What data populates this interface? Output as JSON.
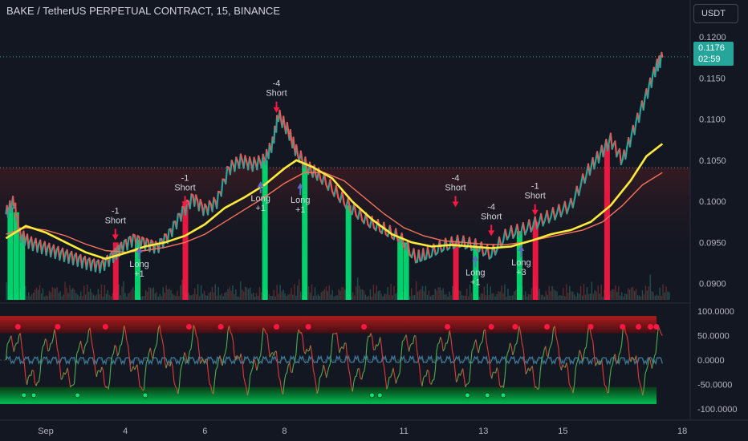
{
  "header": {
    "title": "BAKE / TetherUS PERPETUAL CONTRACT, 15, BINANCE",
    "currency": "USDT"
  },
  "last_price": {
    "value": "0.1176",
    "countdown": "02:59"
  },
  "colors": {
    "background": "#131722",
    "up": "#26a69a",
    "down": "#ef5350",
    "sma_fast": "#ffeb3b",
    "sma_slow": "#f7725b",
    "signal_green": "#00e676",
    "signal_red": "#ff1744",
    "osc_wave": "#3d7a99"
  },
  "chart_data": [
    {
      "type": "line",
      "panel": "price",
      "price_scale": {
        "ticks": [
          "0.1200",
          "0.1150",
          "0.1100",
          "0.1050",
          "0.1000",
          "0.0950",
          "0.0900"
        ],
        "range": [
          0.088,
          0.121
        ]
      },
      "x_ticks": [
        "Sep",
        "4",
        "6",
        "8",
        "11",
        "13",
        "15",
        "18"
      ],
      "x_tick_days": [
        2,
        4,
        6,
        8,
        11,
        13,
        15,
        18
      ],
      "x_range_days": [
        0.85,
        18.2
      ],
      "close_points": [
        [
          1.0,
          0.0985
        ],
        [
          1.2,
          0.1
        ],
        [
          1.35,
          0.096
        ],
        [
          1.6,
          0.095
        ],
        [
          1.9,
          0.0945
        ],
        [
          2.2,
          0.094
        ],
        [
          2.5,
          0.0935
        ],
        [
          2.8,
          0.093
        ],
        [
          3.1,
          0.0925
        ],
        [
          3.4,
          0.0922
        ],
        [
          3.7,
          0.0935
        ],
        [
          3.9,
          0.0945
        ],
        [
          4.2,
          0.0955
        ],
        [
          4.5,
          0.095
        ],
        [
          4.8,
          0.0945
        ],
        [
          5.1,
          0.096
        ],
        [
          5.4,
          0.0985
        ],
        [
          5.7,
          0.1005
        ],
        [
          6.0,
          0.099
        ],
        [
          6.3,
          0.1
        ],
        [
          6.6,
          0.104
        ],
        [
          6.9,
          0.105
        ],
        [
          7.2,
          0.1045
        ],
        [
          7.5,
          0.105
        ],
        [
          7.7,
          0.107
        ],
        [
          7.85,
          0.1105
        ],
        [
          8.1,
          0.1085
        ],
        [
          8.3,
          0.106
        ],
        [
          8.6,
          0.104
        ],
        [
          8.9,
          0.103
        ],
        [
          9.3,
          0.101
        ],
        [
          9.7,
          0.099
        ],
        [
          10.1,
          0.0975
        ],
        [
          10.5,
          0.0965
        ],
        [
          10.9,
          0.0955
        ],
        [
          11.3,
          0.093
        ],
        [
          11.6,
          0.0935
        ],
        [
          12.0,
          0.0945
        ],
        [
          12.4,
          0.095
        ],
        [
          12.8,
          0.0945
        ],
        [
          13.2,
          0.0935
        ],
        [
          13.6,
          0.096
        ],
        [
          14.0,
          0.0965
        ],
        [
          14.4,
          0.0975
        ],
        [
          14.8,
          0.0985
        ],
        [
          15.2,
          0.0995
        ],
        [
          15.6,
          0.1035
        ],
        [
          15.9,
          0.1055
        ],
        [
          16.2,
          0.1075
        ],
        [
          16.5,
          0.105
        ],
        [
          16.8,
          0.109
        ],
        [
          17.1,
          0.113
        ],
        [
          17.35,
          0.1165
        ],
        [
          17.5,
          0.1176
        ]
      ],
      "series": [
        {
          "points": [
            [
              1.0,
              0.0955
            ],
            [
              1.5,
              0.097
            ],
            [
              2.0,
              0.0962
            ],
            [
              2.5,
              0.095
            ],
            [
              3.0,
              0.0938
            ],
            [
              3.5,
              0.093
            ],
            [
              4.0,
              0.0937
            ],
            [
              4.5,
              0.0945
            ],
            [
              5.0,
              0.095
            ],
            [
              5.5,
              0.0958
            ],
            [
              6.0,
              0.0972
            ],
            [
              6.5,
              0.0992
            ],
            [
              7.0,
              0.1005
            ],
            [
              7.5,
              0.102
            ],
            [
              8.0,
              0.104
            ],
            [
              8.3,
              0.105
            ],
            [
              8.7,
              0.1042
            ],
            [
              9.2,
              0.1028
            ],
            [
              9.7,
              0.1
            ],
            [
              10.2,
              0.0978
            ],
            [
              10.7,
              0.096
            ],
            [
              11.2,
              0.095
            ],
            [
              11.7,
              0.0945
            ],
            [
              12.2,
              0.0947
            ],
            [
              12.7,
              0.0945
            ],
            [
              13.2,
              0.0943
            ],
            [
              13.7,
              0.0945
            ],
            [
              14.2,
              0.0952
            ],
            [
              14.7,
              0.096
            ],
            [
              15.2,
              0.0965
            ],
            [
              15.7,
              0.0975
            ],
            [
              16.2,
              0.0995
            ],
            [
              16.7,
              0.1025
            ],
            [
              17.1,
              0.1055
            ],
            [
              17.5,
              0.107
            ]
          ]
        },
        {
          "points": [
            [
              1.0,
              0.096
            ],
            [
              1.5,
              0.0968
            ],
            [
              2.0,
              0.0965
            ],
            [
              2.5,
              0.0958
            ],
            [
              3.0,
              0.0948
            ],
            [
              3.5,
              0.094
            ],
            [
              4.0,
              0.0938
            ],
            [
              4.5,
              0.094
            ],
            [
              5.0,
              0.0944
            ],
            [
              5.5,
              0.095
            ],
            [
              6.0,
              0.096
            ],
            [
              6.5,
              0.0975
            ],
            [
              7.0,
              0.099
            ],
            [
              7.5,
              0.1005
            ],
            [
              8.0,
              0.1022
            ],
            [
              8.5,
              0.1035
            ],
            [
              9.0,
              0.1035
            ],
            [
              9.5,
              0.1025
            ],
            [
              10.0,
              0.1005
            ],
            [
              10.5,
              0.0985
            ],
            [
              11.0,
              0.0968
            ],
            [
              11.5,
              0.0958
            ],
            [
              12.0,
              0.0952
            ],
            [
              12.5,
              0.095
            ],
            [
              13.0,
              0.0948
            ],
            [
              13.5,
              0.0947
            ],
            [
              14.0,
              0.095
            ],
            [
              14.5,
              0.0955
            ],
            [
              15.0,
              0.096
            ],
            [
              15.5,
              0.0965
            ],
            [
              16.0,
              0.0975
            ],
            [
              16.5,
              0.0995
            ],
            [
              17.0,
              0.102
            ],
            [
              17.5,
              0.1035
            ]
          ]
        }
      ],
      "reference_levels": [
        0.1176,
        0.1041
      ],
      "signal_bars": [
        {
          "x": 1.1,
          "side": "long",
          "to": 0.096
        },
        {
          "x": 1.25,
          "side": "long",
          "to": 0.0955
        },
        {
          "x": 1.4,
          "side": "long",
          "to": 0.095
        },
        {
          "x": 3.75,
          "side": "short",
          "to": 0.095
        },
        {
          "x": 4.3,
          "side": "long",
          "to": 0.0935
        },
        {
          "x": 5.5,
          "side": "short",
          "to": 0.1
        },
        {
          "x": 7.5,
          "side": "long",
          "to": 0.0985
        },
        {
          "x": 8.5,
          "side": "long",
          "to": 0.098
        },
        {
          "x": 9.6,
          "side": "long",
          "to": 0.096
        },
        {
          "x": 10.9,
          "side": "long",
          "to": 0.095
        },
        {
          "x": 11.05,
          "side": "long",
          "to": 0.095
        },
        {
          "x": 12.3,
          "side": "short",
          "to": 0.095
        },
        {
          "x": 12.8,
          "side": "long",
          "to": 0.0935
        },
        {
          "x": 13.9,
          "side": "long",
          "to": 0.094
        },
        {
          "x": 14.3,
          "side": "short",
          "to": 0.0975
        },
        {
          "x": 16.1,
          "side": "short",
          "to": 0.106
        }
      ],
      "annotations": [
        {
          "x": 3.75,
          "y": 0.0985,
          "lines": [
            "-1",
            "Short"
          ],
          "side": "short"
        },
        {
          "x": 4.35,
          "y": 0.092,
          "lines": [
            "Long",
            "+1"
          ],
          "side": "long"
        },
        {
          "x": 5.5,
          "y": 0.1025,
          "lines": [
            "-1",
            "Short"
          ],
          "side": "short"
        },
        {
          "x": 7.4,
          "y": 0.1,
          "lines": [
            "Long",
            "+1"
          ],
          "side": "long"
        },
        {
          "x": 7.8,
          "y": 0.114,
          "lines": [
            "-4",
            "Short"
          ],
          "side": "short"
        },
        {
          "x": 8.4,
          "y": 0.0998,
          "lines": [
            "Long",
            "+1"
          ],
          "side": "long"
        },
        {
          "x": 12.3,
          "y": 0.1025,
          "lines": [
            "-4",
            "Short"
          ],
          "side": "short"
        },
        {
          "x": 12.8,
          "y": 0.091,
          "lines": [
            "Long",
            "+1"
          ],
          "side": "long"
        },
        {
          "x": 13.2,
          "y": 0.099,
          "lines": [
            "-4",
            "Short"
          ],
          "side": "short"
        },
        {
          "x": 13.95,
          "y": 0.0922,
          "lines": [
            "Long",
            "+3"
          ],
          "side": "long"
        },
        {
          "x": 14.3,
          "y": 0.1015,
          "lines": [
            "-1",
            "Short"
          ],
          "side": "short"
        }
      ]
    },
    {
      "type": "line",
      "panel": "oscillator",
      "y_ticks": [
        "100.0000",
        "50.0000",
        "0.0000",
        "-50.0000",
        "-100.0000"
      ],
      "ylim": [
        -100,
        100
      ],
      "bands": [
        {
          "from": 55,
          "to": 90,
          "side": "overbought"
        },
        {
          "from": -55,
          "to": -90,
          "side": "oversold"
        }
      ],
      "overbought_x": [
        1.3,
        2.3,
        3.5,
        5.6,
        6.4,
        7.8,
        8.6,
        10.0,
        12.1,
        13.2,
        13.8,
        14.6,
        15.7,
        16.5,
        16.9,
        17.2,
        17.35
      ],
      "oversold_x": [
        1.45,
        1.7,
        2.8,
        4.5,
        10.2,
        10.4,
        12.6,
        13.1,
        13.5
      ]
    }
  ]
}
